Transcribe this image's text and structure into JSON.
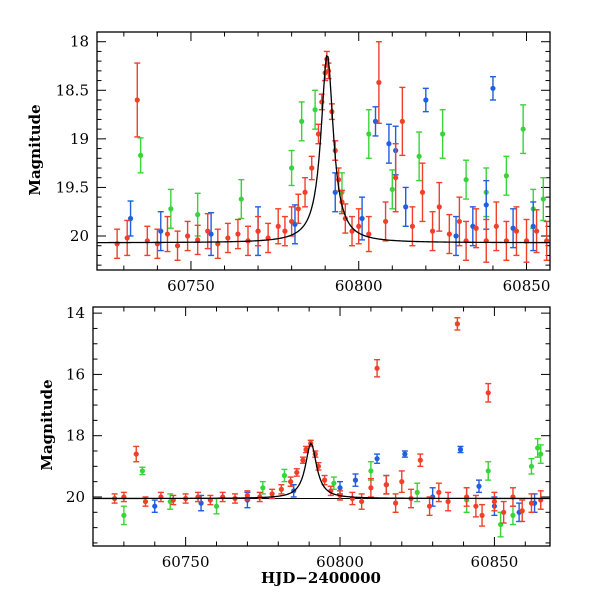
{
  "chart_data": [
    {
      "type": "scatter",
      "panel": "top",
      "title": "",
      "xlabel": "",
      "ylabel": "Magnitude",
      "xlim": [
        60722,
        60857
      ],
      "ylim": [
        20.35,
        17.9
      ],
      "y_inverted": true,
      "xticks": [
        60750,
        60800,
        60850
      ],
      "yticks": [
        18,
        18.5,
        19,
        19.5,
        20
      ],
      "ytick_labels": [
        "18",
        "18.5",
        "19",
        "19.5",
        "20"
      ],
      "colors": {
        "red": "#f0402a",
        "blue": "#1f5fe0",
        "green": "#3ad43a",
        "model": "#000000"
      },
      "model_curve": {
        "baseline": 20.07,
        "peak_x": 60790.6,
        "peak_y": 18.13
      },
      "series": [
        {
          "color_key": "green",
          "points": [
            [
              60735,
              19.17,
              0.18
            ],
            [
              60744,
              19.72,
              0.2
            ],
            [
              60752,
              19.78,
              0.22
            ],
            [
              60765,
              19.62,
              0.2
            ],
            [
              60780,
              19.3,
              0.18
            ],
            [
              60783,
              18.82,
              0.2
            ],
            [
              60787,
              18.7,
              0.2
            ],
            [
              60795,
              19.55,
              0.2
            ],
            [
              60803,
              18.95,
              0.25
            ],
            [
              60810,
              19.52,
              0.2
            ],
            [
              60818,
              19.18,
              0.25
            ],
            [
              60825,
              18.95,
              0.25
            ],
            [
              60832,
              19.42,
              0.2
            ],
            [
              60838,
              19.55,
              0.25
            ],
            [
              60844,
              19.38,
              0.2
            ],
            [
              60849,
              18.9,
              0.25
            ],
            [
              60852,
              19.72,
              0.2
            ],
            [
              60855,
              19.62,
              0.22
            ]
          ]
        },
        {
          "color_key": "blue",
          "points": [
            [
              60732,
              19.82,
              0.18
            ],
            [
              60741,
              19.95,
              0.2
            ],
            [
              60756,
              19.98,
              0.22
            ],
            [
              60770,
              19.95,
              0.25
            ],
            [
              60781,
              19.88,
              0.2
            ],
            [
              60793,
              19.55,
              0.2
            ],
            [
              60801,
              19.82,
              0.22
            ],
            [
              60805,
              18.82,
              0.15
            ],
            [
              60809,
              19.05,
              0.2
            ],
            [
              60811,
              19.12,
              0.25
            ],
            [
              60814,
              19.7,
              0.2
            ],
            [
              60820,
              18.6,
              0.12
            ],
            [
              60829,
              20.0,
              0.2
            ],
            [
              60834,
              19.9,
              0.2
            ],
            [
              60838,
              19.68,
              0.25
            ],
            [
              60840,
              18.48,
              0.12
            ],
            [
              60846,
              19.92,
              0.2
            ],
            [
              60852,
              19.9,
              0.25
            ]
          ]
        },
        {
          "color_key": "red",
          "points": [
            [
              60728,
              20.08,
              0.15
            ],
            [
              60731,
              20.02,
              0.18
            ],
            [
              60734,
              18.6,
              0.38
            ],
            [
              60737,
              20.05,
              0.15
            ],
            [
              60740,
              20.08,
              0.15
            ],
            [
              60743,
              19.98,
              0.18
            ],
            [
              60746,
              20.1,
              0.15
            ],
            [
              60749,
              20.0,
              0.15
            ],
            [
              60752,
              20.04,
              0.15
            ],
            [
              60755,
              19.95,
              0.18
            ],
            [
              60758,
              20.08,
              0.15
            ],
            [
              60761,
              20.02,
              0.15
            ],
            [
              60764,
              19.98,
              0.15
            ],
            [
              60767,
              20.05,
              0.15
            ],
            [
              60770,
              19.95,
              0.15
            ],
            [
              60773,
              20.02,
              0.15
            ],
            [
              60776,
              19.9,
              0.18
            ],
            [
              60778,
              19.95,
              0.15
            ],
            [
              60780,
              19.85,
              0.15
            ],
            [
              60782,
              19.72,
              0.15
            ],
            [
              60784,
              19.55,
              0.15
            ],
            [
              60786,
              19.3,
              0.12
            ],
            [
              60788,
              18.95,
              0.1
            ],
            [
              60789,
              18.62,
              0.08
            ],
            [
              60790,
              18.32,
              0.08
            ],
            [
              60790.5,
              18.18,
              0.08
            ],
            [
              60791,
              18.3,
              0.08
            ],
            [
              60792,
              18.72,
              0.08
            ],
            [
              60793,
              19.12,
              0.1
            ],
            [
              60794,
              19.42,
              0.12
            ],
            [
              60795,
              19.65,
              0.12
            ],
            [
              60796,
              19.82,
              0.15
            ],
            [
              60798,
              19.95,
              0.15
            ],
            [
              60800,
              19.9,
              0.18
            ],
            [
              60803,
              19.98,
              0.18
            ],
            [
              60806,
              18.42,
              0.42
            ],
            [
              60808,
              19.85,
              0.2
            ],
            [
              60811,
              19.4,
              0.35
            ],
            [
              60813,
              18.82,
              0.35
            ],
            [
              60816,
              19.9,
              0.2
            ],
            [
              60819,
              19.55,
              0.3
            ],
            [
              60822,
              19.95,
              0.2
            ],
            [
              60824,
              19.7,
              0.25
            ],
            [
              60827,
              19.98,
              0.2
            ],
            [
              60830,
              19.85,
              0.25
            ],
            [
              60832,
              20.05,
              0.2
            ],
            [
              60835,
              19.92,
              0.2
            ],
            [
              60838,
              20.05,
              0.22
            ],
            [
              60841,
              19.9,
              0.25
            ],
            [
              60844,
              20.05,
              0.2
            ],
            [
              60847,
              19.95,
              0.25
            ],
            [
              60850,
              20.05,
              0.22
            ],
            [
              60853,
              19.95,
              0.22
            ],
            [
              60856,
              20.05,
              0.2
            ]
          ]
        }
      ]
    },
    {
      "type": "scatter",
      "panel": "bottom",
      "title": "",
      "xlabel": "HJD−2400000",
      "ylabel": "Magnitude",
      "xlim": [
        60720,
        60868
      ],
      "ylim": [
        21.6,
        13.8
      ],
      "y_inverted": true,
      "xticks": [
        60750,
        60800,
        60850
      ],
      "yticks": [
        14,
        16,
        18,
        20
      ],
      "ytick_labels": [
        "14",
        "16",
        "18",
        "20"
      ],
      "colors": {
        "red": "#f0402a",
        "blue": "#1f5fe0",
        "green": "#3ad43a",
        "model": "#000000"
      },
      "model_curve": {
        "baseline": 20.05,
        "peak_x": 60790.6,
        "peak_y": 18.25
      },
      "reference_line": 20.05,
      "series": [
        {
          "color_key": "green",
          "points": [
            [
              60730,
              20.6,
              0.3
            ],
            [
              60736,
              19.15,
              0.12
            ],
            [
              60745,
              20.15,
              0.25
            ],
            [
              60760,
              20.3,
              0.25
            ],
            [
              60775,
              19.7,
              0.2
            ],
            [
              60782,
              19.3,
              0.2
            ],
            [
              60798,
              19.55,
              0.2
            ],
            [
              60810,
              19.15,
              0.3
            ],
            [
              60825,
              19.85,
              0.3
            ],
            [
              60841,
              20.1,
              0.4
            ],
            [
              60848,
              19.15,
              0.3
            ],
            [
              60852,
              20.9,
              0.4
            ],
            [
              60856,
              20.6,
              0.3
            ],
            [
              60862,
              19.0,
              0.25
            ],
            [
              60864,
              18.4,
              0.3
            ],
            [
              60865,
              18.6,
              0.3
            ]
          ]
        },
        {
          "color_key": "blue",
          "points": [
            [
              60740,
              20.3,
              0.2
            ],
            [
              60755,
              20.2,
              0.25
            ],
            [
              60770,
              20.1,
              0.25
            ],
            [
              60785,
              19.8,
              0.2
            ],
            [
              60800,
              19.7,
              0.2
            ],
            [
              60805,
              19.45,
              0.2
            ],
            [
              60812,
              18.75,
              0.15
            ],
            [
              60815,
              19.6,
              0.3
            ],
            [
              60821,
              18.6,
              0.1
            ],
            [
              60830,
              20.0,
              0.3
            ],
            [
              60839,
              18.45,
              0.1
            ],
            [
              60845,
              19.65,
              0.2
            ],
            [
              60850,
              20.3,
              0.3
            ],
            [
              60858,
              20.5,
              0.3
            ],
            [
              60863,
              20.2,
              0.3
            ]
          ]
        },
        {
          "color_key": "red",
          "points": [
            [
              60727,
              20.05,
              0.15
            ],
            [
              60730,
              20.0,
              0.15
            ],
            [
              60734,
              18.6,
              0.25
            ],
            [
              60737,
              20.15,
              0.15
            ],
            [
              60742,
              20.0,
              0.15
            ],
            [
              60746,
              20.1,
              0.15
            ],
            [
              60750,
              20.05,
              0.15
            ],
            [
              60754,
              20.0,
              0.15
            ],
            [
              60758,
              20.1,
              0.15
            ],
            [
              60762,
              20.0,
              0.15
            ],
            [
              60766,
              20.05,
              0.15
            ],
            [
              60770,
              19.95,
              0.15
            ],
            [
              60774,
              20.0,
              0.15
            ],
            [
              60778,
              19.9,
              0.15
            ],
            [
              60781,
              19.75,
              0.15
            ],
            [
              60784,
              19.5,
              0.15
            ],
            [
              60786,
              19.2,
              0.12
            ],
            [
              60788,
              18.8,
              0.1
            ],
            [
              60789,
              18.45,
              0.1
            ],
            [
              60790.5,
              18.25,
              0.1
            ],
            [
              60792,
              18.6,
              0.1
            ],
            [
              60793,
              19.0,
              0.12
            ],
            [
              60795,
              19.45,
              0.15
            ],
            [
              60797,
              19.8,
              0.15
            ],
            [
              60800,
              19.95,
              0.15
            ],
            [
              60804,
              20.05,
              0.2
            ],
            [
              60807,
              20.15,
              0.25
            ],
            [
              60810,
              19.7,
              0.3
            ],
            [
              60812,
              15.8,
              0.28
            ],
            [
              60815,
              19.6,
              0.3
            ],
            [
              60818,
              20.2,
              0.3
            ],
            [
              60820,
              19.5,
              0.35
            ],
            [
              60823,
              20.05,
              0.3
            ],
            [
              60826,
              18.8,
              0.2
            ],
            [
              60829,
              20.3,
              0.3
            ],
            [
              60832,
              19.85,
              0.3
            ],
            [
              60835,
              20.15,
              0.3
            ],
            [
              60838,
              14.35,
              0.2
            ],
            [
              60841,
              20.0,
              0.3
            ],
            [
              60844,
              20.3,
              0.35
            ],
            [
              60846,
              20.6,
              0.35
            ],
            [
              60848,
              16.6,
              0.3
            ],
            [
              60850,
              20.15,
              0.3
            ],
            [
              60853,
              20.5,
              0.35
            ],
            [
              60856,
              20.0,
              0.3
            ],
            [
              60859,
              20.45,
              0.35
            ],
            [
              60862,
              20.2,
              0.3
            ],
            [
              60865,
              20.1,
              0.3
            ]
          ]
        }
      ]
    }
  ]
}
